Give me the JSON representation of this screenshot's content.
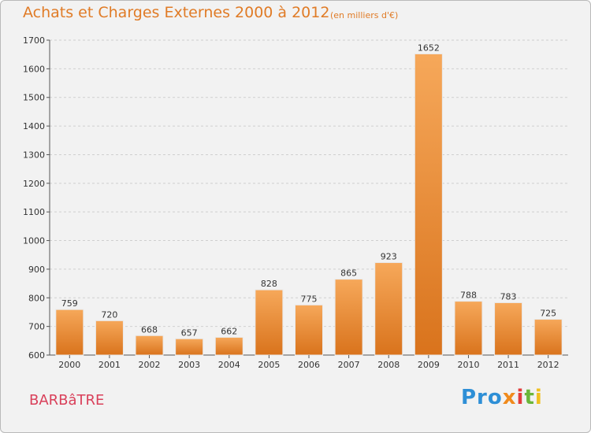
{
  "header": {
    "title": "Achats et Charges Externes 2000 à 2012",
    "subtitle": "(en milliers d'€)"
  },
  "footer": {
    "commune": "BARBâTRE",
    "brand": [
      "Pro",
      "x",
      "i",
      "t",
      "i"
    ]
  },
  "colors": {
    "title": "#e07b26",
    "commune": "#d9405a",
    "bar_light": "#f6a85a",
    "bar_dark": "#d9731c",
    "grid": "#cfcfcf"
  },
  "chart_data": {
    "type": "bar",
    "title": "Achats et Charges Externes 2000 à 2012",
    "subtitle": "(en milliers d'€)",
    "categories": [
      "2000",
      "2001",
      "2002",
      "2003",
      "2004",
      "2005",
      "2006",
      "2007",
      "2008",
      "2009",
      "2010",
      "2011",
      "2012"
    ],
    "values": [
      759,
      720,
      668,
      657,
      662,
      828,
      775,
      865,
      923,
      1652,
      788,
      783,
      725
    ],
    "ylim": [
      600,
      1700
    ],
    "yticks": [
      600,
      700,
      800,
      900,
      1000,
      1100,
      1200,
      1300,
      1400,
      1500,
      1600,
      1700
    ],
    "xlabel": "",
    "ylabel": "",
    "grid": true,
    "legend": "none"
  }
}
